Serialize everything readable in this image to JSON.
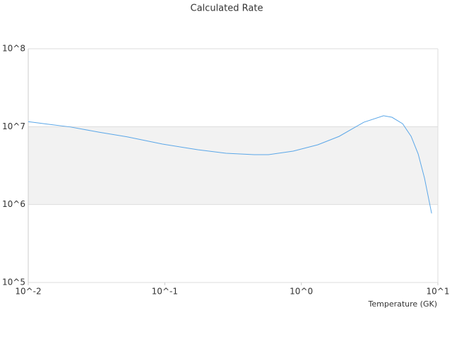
{
  "chart_data": {
    "type": "line",
    "title": "Calculated Rate",
    "x_label": "Temperature (GK)",
    "xscale": "log",
    "yscale": "log",
    "xlim": [
      0.01,
      10
    ],
    "ylim": [
      100000,
      100000000
    ],
    "xticks": [
      {
        "value": 0.01,
        "label": "10^-2"
      },
      {
        "value": 0.1,
        "label": "10^-1"
      },
      {
        "value": 1,
        "label": "10^0"
      },
      {
        "value": 10,
        "label": "10^1"
      }
    ],
    "yticks": [
      {
        "value": 100000,
        "label": "10^5"
      },
      {
        "value": 1000000,
        "label": "10^6"
      },
      {
        "value": 10000000,
        "label": "10^7"
      },
      {
        "value": 100000000,
        "label": "10^8"
      }
    ],
    "grid": true,
    "shaded_band": [
      1000000,
      10000000
    ],
    "shaded_color": "#f2f2f2",
    "series": [
      {
        "color": "#5ba7e8",
        "x": [
          0.01,
          0.0143,
          0.0204,
          0.0329,
          0.053,
          0.0962,
          0.1745,
          0.281,
          0.452,
          0.574,
          0.871,
          1.32,
          1.89,
          2.87,
          4.0,
          4.61,
          5.52,
          6.37,
          7.17,
          7.98,
          9.0
        ],
        "values": [
          11600000,
          10700000,
          9900000,
          8500000,
          7400000,
          5970000,
          5060000,
          4560000,
          4370000,
          4370000,
          4850000,
          5850000,
          7500000,
          11400000,
          13800000,
          13200000,
          10900000,
          7500000,
          4470000,
          2190000,
          770000
        ]
      }
    ]
  }
}
